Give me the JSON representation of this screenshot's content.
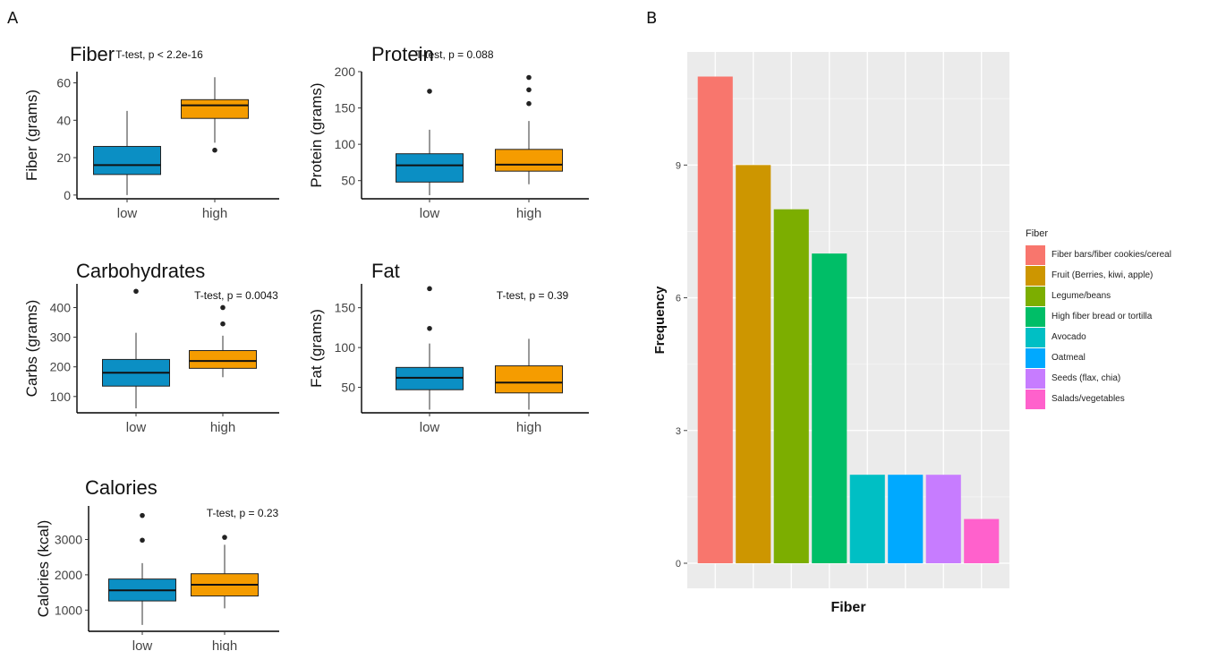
{
  "panel_labels": {
    "a": "A",
    "b": "B"
  },
  "colors": {
    "low": "#0b8fc4",
    "high": "#f59c00"
  },
  "chart_data": [
    {
      "type": "box",
      "title": "Fiber",
      "ylabel": "Fiber (grams)",
      "categories": [
        "low",
        "high"
      ],
      "annotation": "T-test, p < 2.2e-16",
      "ylim": [
        -2,
        66
      ],
      "yticks": [
        0,
        20,
        40,
        60
      ],
      "boxes": [
        {
          "category": "low",
          "min": 0,
          "q1": 11,
          "median": 16,
          "q3": 26,
          "max": 45,
          "outliers": []
        },
        {
          "category": "high",
          "min": 28,
          "q1": 41,
          "median": 48,
          "q3": 51,
          "max": 63,
          "outliers": [
            24
          ]
        }
      ]
    },
    {
      "type": "box",
      "title": "Protein",
      "ylabel": "Protein (grams)",
      "categories": [
        "low",
        "high"
      ],
      "annotation": "T-test, p = 0.088",
      "ylim": [
        25,
        200
      ],
      "yticks": [
        50,
        100,
        150,
        200
      ],
      "boxes": [
        {
          "category": "low",
          "min": 30,
          "q1": 48,
          "median": 71,
          "q3": 87,
          "max": 120,
          "outliers": [
            173
          ]
        },
        {
          "category": "high",
          "min": 45,
          "q1": 63,
          "median": 72,
          "q3": 93,
          "max": 132,
          "outliers": [
            156,
            175,
            192
          ]
        }
      ]
    },
    {
      "type": "box",
      "title": "Carbohydrates",
      "ylabel": "Carbs (grams)",
      "categories": [
        "low",
        "high"
      ],
      "annotation": "T-test, p = 0.0043",
      "ylim": [
        45,
        480
      ],
      "yticks": [
        100,
        200,
        300,
        400
      ],
      "boxes": [
        {
          "category": "low",
          "min": 60,
          "q1": 135,
          "median": 180,
          "q3": 225,
          "max": 315,
          "outliers": [
            455
          ]
        },
        {
          "category": "high",
          "min": 165,
          "q1": 195,
          "median": 220,
          "q3": 255,
          "max": 305,
          "outliers": [
            345,
            400
          ]
        }
      ]
    },
    {
      "type": "box",
      "title": "Fat",
      "ylabel": "Fat (grams)",
      "categories": [
        "low",
        "high"
      ],
      "annotation": "T-test, p = 0.39",
      "ylim": [
        18,
        180
      ],
      "yticks": [
        50,
        100,
        150
      ],
      "boxes": [
        {
          "category": "low",
          "min": 22,
          "q1": 47,
          "median": 62,
          "q3": 75,
          "max": 105,
          "outliers": [
            124,
            174
          ]
        },
        {
          "category": "high",
          "min": 22,
          "q1": 43,
          "median": 56,
          "q3": 77,
          "max": 111,
          "outliers": []
        }
      ]
    },
    {
      "type": "box",
      "title": "Calories",
      "ylabel": "Calories (kcal)",
      "categories": [
        "low",
        "high"
      ],
      "annotation": "T-test, p = 0.23",
      "ylim": [
        400,
        3950
      ],
      "yticks": [
        1000,
        2000,
        3000
      ],
      "boxes": [
        {
          "category": "low",
          "min": 580,
          "q1": 1260,
          "median": 1560,
          "q3": 1880,
          "max": 2330,
          "outliers": [
            2980,
            3680
          ]
        },
        {
          "category": "high",
          "min": 1050,
          "q1": 1400,
          "median": 1720,
          "q3": 2030,
          "max": 2850,
          "outliers": [
            3060
          ]
        }
      ]
    },
    {
      "type": "bar",
      "xlabel": "Fiber",
      "ylabel": "Frequency",
      "ylim": [
        0,
        11.5
      ],
      "yticks": [
        0,
        3,
        6,
        9
      ],
      "legend_title": "Fiber",
      "legend_position": "right",
      "grid": true,
      "categories": [
        "Fiber bars/fiber cookies/cereal",
        "Fruit (Berries, kiwi, apple)",
        "Legume/beans",
        "High fiber bread or tortilla",
        "Avocado",
        "Oatmeal",
        "Seeds (flax, chia)",
        "Salads/vegetables"
      ],
      "values": [
        11,
        9,
        8,
        7,
        2,
        2,
        2,
        1
      ],
      "colors": [
        "#f8766d",
        "#cd9600",
        "#7cae00",
        "#00be67",
        "#00bfc4",
        "#00a9ff",
        "#c77cff",
        "#ff61cc"
      ]
    }
  ]
}
